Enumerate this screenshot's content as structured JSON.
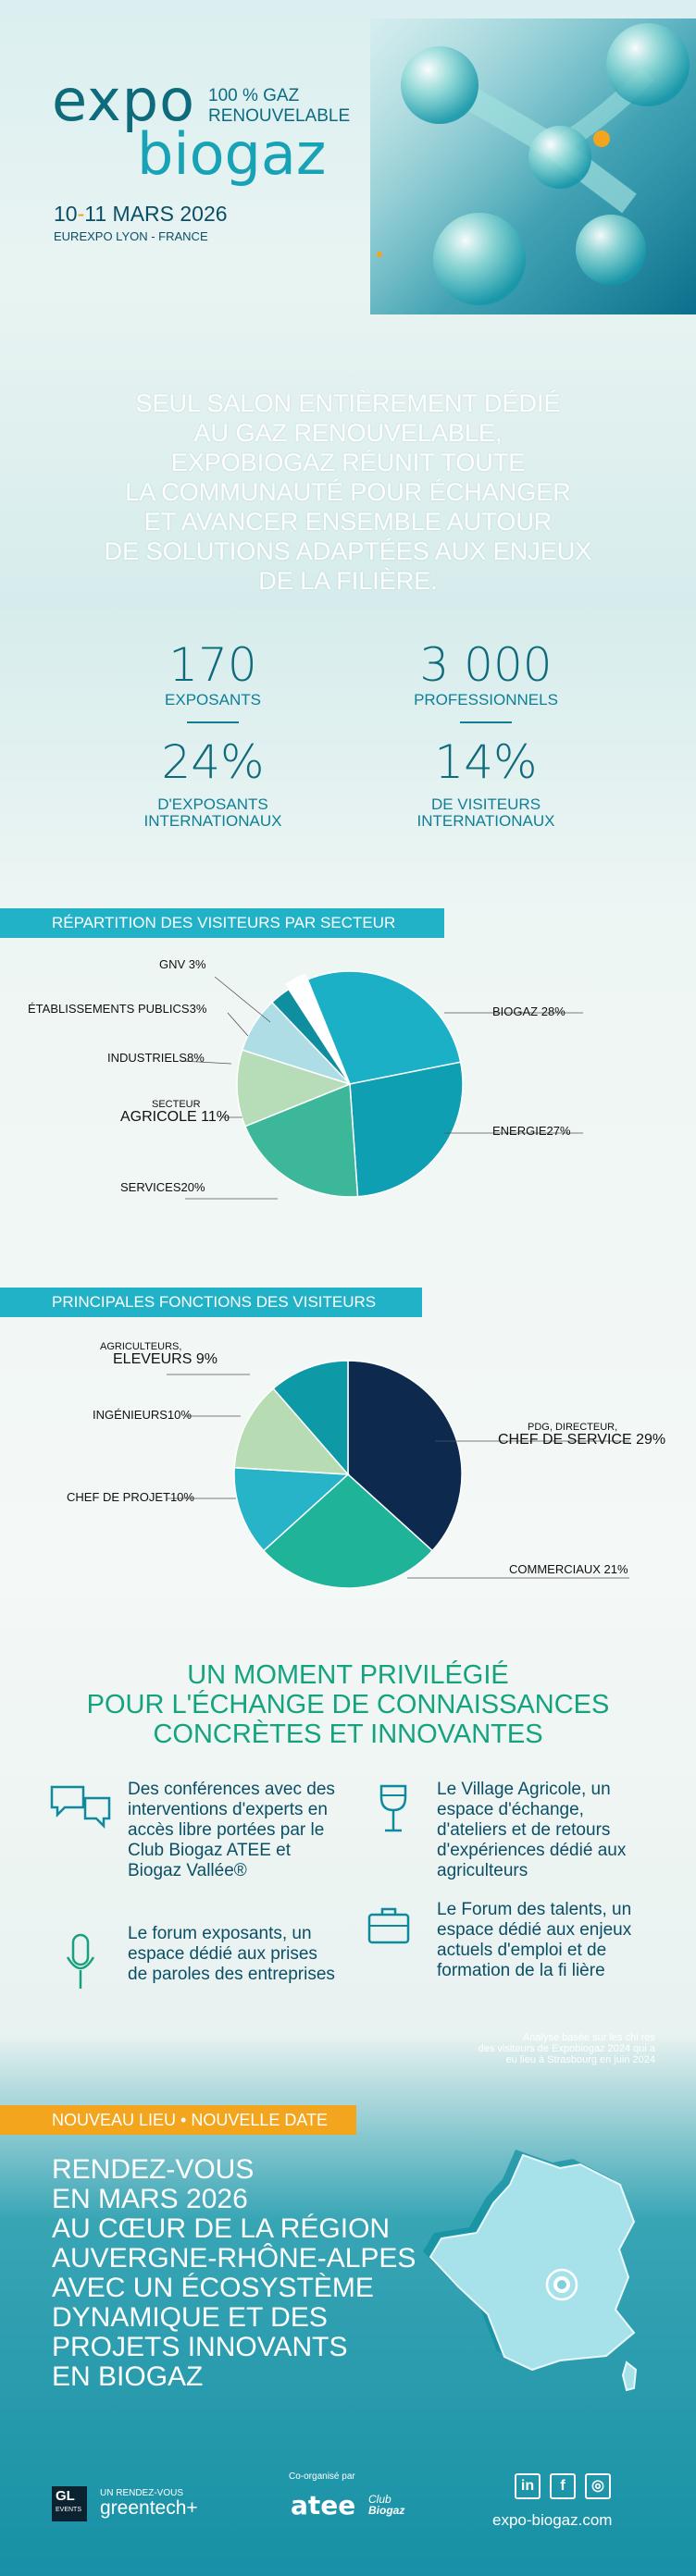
{
  "header": {
    "logo_expo": "expo",
    "logo_biogaz": "biogaz",
    "tagline_1": "100 % GAZ",
    "tagline_2": "RENOUVELABLE",
    "date_day1": "10",
    "date_sep": "-",
    "date_rest": "11 MARS 2026",
    "place": "EUREXPO LYON - FRANCE"
  },
  "intro": {
    "lines": [
      "SEUL SALON ENTIÈREMENT DÉDIÉ",
      "AU GAZ RENOUVELABLE,",
      "EXPOBIOGAZ RÉUNIT TOUTE",
      "LA COMMUNAUTÉ POUR ÉCHANGER",
      "ET AVANCER ENSEMBLE AUTOUR",
      "DE SOLUTIONS ADAPTÉES AUX ENJEUX",
      "DE LA FILIÈRE."
    ]
  },
  "stats": [
    {
      "value": "170",
      "label_1": "EXPOSANTS",
      "label_2": ""
    },
    {
      "value": "3 000",
      "label_1": "PROFESSIONNELS",
      "label_2": ""
    },
    {
      "value": "24%",
      "label_1": "D'EXPOSANTS",
      "label_2": "INTERNATIONAUX"
    },
    {
      "value": "14%",
      "label_1": "DE VISITEURS",
      "label_2": "INTERNATIONAUX"
    }
  ],
  "sections": {
    "sector_tag": "RÉPARTITION DES VISITEURS PAR SECTEUR",
    "function_tag": "PRINCIPALES FONCTIONS DES VISITEURS",
    "new_tag": "NOUVEAU LIEU • NOUVELLE DATE"
  },
  "chart_data": [
    {
      "type": "pie",
      "slices": [
        {
          "label": "BIOGAZ",
          "value": 28,
          "color": "#1bb0c6"
        },
        {
          "label": "ENERGIE",
          "value": 27,
          "color": "#0e9fb2"
        },
        {
          "label": "SERVICES",
          "value": 20,
          "color": "#3db79a"
        },
        {
          "label": "SECTEUR AGRICOLE",
          "value": 11,
          "color": "#b6dcb8"
        },
        {
          "label": "INDUSTRIELS",
          "value": 8,
          "color": "#aedde6"
        },
        {
          "label": "ÉTABLISSEMENTS PUBLICS",
          "value": 3,
          "color": "#0e8e9e"
        },
        {
          "label": "GNV",
          "value": 3,
          "color": "#ffffff"
        }
      ]
    },
    {
      "type": "pie",
      "slices": [
        {
          "label": "PDG, DIRECTEUR, CHEF DE SERVICE",
          "value": 29,
          "color": "#0d2a4e"
        },
        {
          "label": "COMMERCIAUX",
          "value": 21,
          "color": "#1fb39a"
        },
        {
          "label": "CHEF DE PROJET",
          "value": 10,
          "color": "#27b4c8"
        },
        {
          "label": "INGÉNIEURS",
          "value": 10,
          "color": "#b7dcb4"
        },
        {
          "label": "AGRICULTEURS, ELEVEURS",
          "value": 9,
          "color": "#0d9aa6"
        }
      ]
    }
  ],
  "pie1_labels": {
    "gnv": "GNV 3%",
    "publics": "ÉTABLISSEMENTS PUBLICS3%",
    "industriels": "INDUSTRIELS8%",
    "agri_small": "SECTEUR",
    "agri_big": "AGRICOLE 11%",
    "services": "SERVICES20%",
    "biogaz": "BIOGAZ 28%",
    "energie": "ENERGIE27%"
  },
  "pie2_labels": {
    "agri_small": "AGRICULTEURS,",
    "agri_big": "ELEVEURS 9%",
    "ingenieurs": "INGÉNIEURS10%",
    "projet": "CHEF DE PROJET10%",
    "pdg_small": "PDG, DIRECTEUR,",
    "pdg_big": "CHEF DE SERVICE 29%",
    "commerciaux": "COMMERCIAUX  21%"
  },
  "moment": {
    "title_1": "UN MOMENT PRIVILÉGIÉ",
    "title_2": "POUR L'ÉCHANGE DE CONNAISSANCES",
    "title_3": "CONCRÈTES ET INNOVANTES",
    "features": [
      {
        "icon": "speech-bubbles-icon",
        "text": "Des conférences avec des interventions d'experts en accès libre portées par le Club Biogaz ATEE et Biogaz Vallée®"
      },
      {
        "icon": "microphone-icon",
        "text": "Le forum exposants, un espace dédié aux prises de paroles des entreprises"
      },
      {
        "icon": "wine-glass-icon",
        "text": "Le Village Agricole, un espace d'échange, d'ateliers et de retours d'expériences dédié aux agriculteurs"
      },
      {
        "icon": "briefcase-icon",
        "text": "Le Forum des talents, un espace dédié aux enjeux actuels d'emploi et de formation de la fi lière"
      }
    ],
    "note_1": "Analyse basée sur les chi res",
    "note_2": "des visiteurs de Expobiogaz 2024 qui a",
    "note_3": "eu lieu à Strasbourg en juin 2024"
  },
  "rdv": {
    "lines": [
      "RENDEZ-VOUS",
      "EN MARS 2026",
      "AU CŒUR DE LA RÉGION",
      "AUVERGNE-RHÔNE-ALPES",
      "AVEC UN ÉCOSYSTÈME",
      "DYNAMIQUE ET DES",
      "PROJETS INNOVANTS",
      "EN BIOGAZ"
    ]
  },
  "footer": {
    "gl_badge": "GL",
    "gl_sub": "EVENTS",
    "rendezvous": "UN RENDEZ-VOUS",
    "greentech": "greentech+",
    "coorg": "Co-organisé par",
    "atee": "atee",
    "club": "Club",
    "biogaz": "Biogaz",
    "social_li": "in",
    "social_fb": "f",
    "social_ig": "◎",
    "website": "expo-biogaz.com"
  },
  "colors": {
    "accent_orange": "#f2a51d",
    "accent_teal": "#22b2c7",
    "dark_teal": "#0e6b7c",
    "green": "#15a37f"
  }
}
